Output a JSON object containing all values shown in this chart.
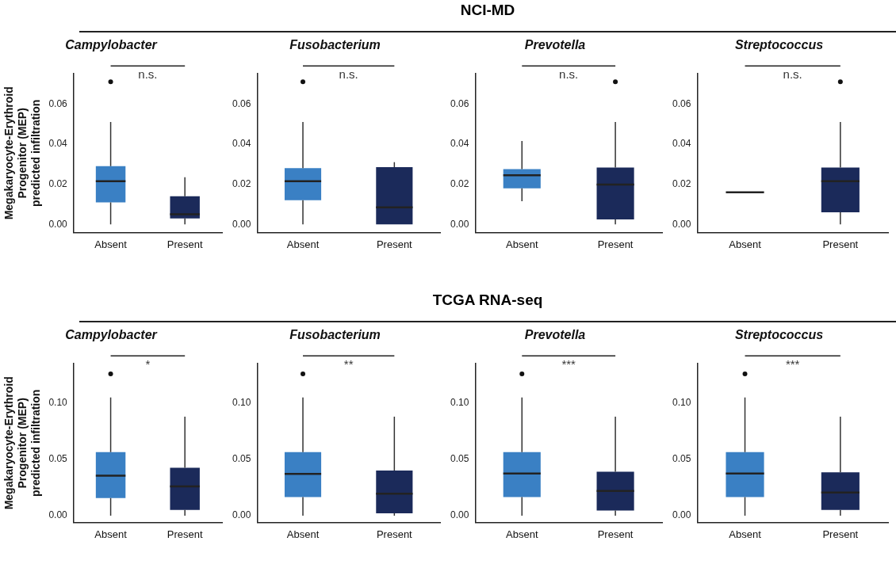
{
  "chart_data": [
    {
      "type": "other",
      "title": "NCI-MD"
    },
    {
      "type": "box",
      "title": "Campylobacter",
      "ylabel": "Megakaryocyte-Erythroid\nProgenitor (MEP)\npredicted infiltration",
      "categories": [
        "Absent",
        "Present"
      ],
      "colors": [
        "#3a80c4",
        "#1b2a5a"
      ],
      "ylim": [
        -0.004,
        0.075
      ],
      "yticks": [
        {
          "value": 0,
          "label": "0.00"
        },
        {
          "value": 0.02,
          "label": "0.02"
        },
        {
          "value": 0.04,
          "label": "0.04"
        },
        {
          "value": 0.06,
          "label": "0.06"
        }
      ],
      "annotations": [
        "n.s."
      ],
      "boxes": [
        {
          "low": 0,
          "q1": 0.011,
          "median": 0.0215,
          "q3": 0.029,
          "high": 0.051,
          "outliers": [
            0.071
          ]
        },
        {
          "low": 0,
          "q1": 0.003,
          "median": 0.005,
          "q3": 0.014,
          "high": 0.0235
        }
      ]
    },
    {
      "type": "box",
      "title": "Fusobacterium",
      "categories": [
        "Absent",
        "Present"
      ],
      "colors": [
        "#3a80c4",
        "#1b2a5a"
      ],
      "ylim": [
        -0.004,
        0.075
      ],
      "yticks": [
        {
          "value": 0,
          "label": "0.00"
        },
        {
          "value": 0.02,
          "label": "0.02"
        },
        {
          "value": 0.04,
          "label": "0.04"
        },
        {
          "value": 0.06,
          "label": "0.06"
        }
      ],
      "annotations": [
        "n.s."
      ],
      "boxes": [
        {
          "low": 0,
          "q1": 0.012,
          "median": 0.0215,
          "q3": 0.028,
          "high": 0.051,
          "outliers": [
            0.071
          ]
        },
        {
          "low": 0,
          "q1": 0,
          "median": 0.0085,
          "q3": 0.0285,
          "high": 0.031
        }
      ]
    },
    {
      "type": "box",
      "title": "Prevotella",
      "categories": [
        "Absent",
        "Present"
      ],
      "colors": [
        "#3a80c4",
        "#1b2a5a"
      ],
      "ylim": [
        -0.004,
        0.075
      ],
      "yticks": [
        {
          "value": 0,
          "label": "0.00"
        },
        {
          "value": 0.02,
          "label": "0.02"
        },
        {
          "value": 0.04,
          "label": "0.04"
        },
        {
          "value": 0.06,
          "label": "0.06"
        }
      ],
      "annotations": [
        "n.s."
      ],
      "boxes": [
        {
          "low": 0.0115,
          "q1": 0.018,
          "median": 0.0245,
          "q3": 0.0275,
          "high": 0.0415
        },
        {
          "low": 0,
          "q1": 0.0025,
          "median": 0.0198,
          "q3": 0.0283,
          "high": 0.051,
          "outliers": [
            0.071
          ]
        }
      ]
    },
    {
      "type": "box",
      "title": "Streptococcus",
      "categories": [
        "Absent",
        "Present"
      ],
      "colors": [
        "#222222",
        "#1b2a5a"
      ],
      "ylim": [
        -0.004,
        0.075
      ],
      "yticks": [
        {
          "value": 0,
          "label": "0.00"
        },
        {
          "value": 0.02,
          "label": "0.02"
        },
        {
          "value": 0.04,
          "label": "0.04"
        },
        {
          "value": 0.06,
          "label": "0.06"
        }
      ],
      "annotations": [
        "n.s."
      ],
      "boxes": [
        {
          "low": 0.016,
          "q1": 0.016,
          "median": 0.016,
          "q3": 0.016,
          "high": 0.016
        },
        {
          "low": 0,
          "q1": 0.006,
          "median": 0.0215,
          "q3": 0.0283,
          "high": 0.051,
          "outliers": [
            0.071
          ]
        }
      ]
    },
    {
      "type": "other",
      "title": "TCGA RNA-seq"
    },
    {
      "type": "box",
      "title": "Campylobacter",
      "ylabel": "Megakaryocyte-Erythroid\nProgenitor (MEP)\npredicted infiltration",
      "categories": [
        "Absent",
        "Present"
      ],
      "colors": [
        "#3a80c4",
        "#1b2a5a"
      ],
      "ylim": [
        -0.006,
        0.135
      ],
      "yticks": [
        {
          "value": 0,
          "label": "0.00"
        },
        {
          "value": 0.05,
          "label": "0.05"
        },
        {
          "value": 0.1,
          "label": "0.10"
        }
      ],
      "annotations": [
        "*"
      ],
      "boxes": [
        {
          "low": 0,
          "q1": 0.0155,
          "median": 0.0355,
          "q3": 0.0565,
          "high": 0.105,
          "outliers": [
            0.126
          ]
        },
        {
          "low": 0,
          "q1": 0.005,
          "median": 0.026,
          "q3": 0.0425,
          "high": 0.088
        }
      ]
    },
    {
      "type": "box",
      "title": "Fusobacterium",
      "categories": [
        "Absent",
        "Present"
      ],
      "colors": [
        "#3a80c4",
        "#1b2a5a"
      ],
      "ylim": [
        -0.006,
        0.135
      ],
      "yticks": [
        {
          "value": 0,
          "label": "0.00"
        },
        {
          "value": 0.05,
          "label": "0.05"
        },
        {
          "value": 0.1,
          "label": "0.10"
        }
      ],
      "annotations": [
        "**"
      ],
      "boxes": [
        {
          "low": 0,
          "q1": 0.0165,
          "median": 0.037,
          "q3": 0.0565,
          "high": 0.105,
          "outliers": [
            0.126
          ]
        },
        {
          "low": 0,
          "q1": 0.002,
          "median": 0.0195,
          "q3": 0.04,
          "high": 0.088
        }
      ]
    },
    {
      "type": "box",
      "title": "Prevotella",
      "categories": [
        "Absent",
        "Present"
      ],
      "colors": [
        "#3a80c4",
        "#1b2a5a"
      ],
      "ylim": [
        -0.006,
        0.135
      ],
      "yticks": [
        {
          "value": 0,
          "label": "0.00"
        },
        {
          "value": 0.05,
          "label": "0.05"
        },
        {
          "value": 0.1,
          "label": "0.10"
        }
      ],
      "annotations": [
        "***"
      ],
      "boxes": [
        {
          "low": 0,
          "q1": 0.0165,
          "median": 0.0375,
          "q3": 0.0565,
          "high": 0.105,
          "outliers": [
            0.126
          ]
        },
        {
          "low": 0,
          "q1": 0.0045,
          "median": 0.022,
          "q3": 0.039,
          "high": 0.088
        }
      ]
    },
    {
      "type": "box",
      "title": "Streptococcus",
      "categories": [
        "Absent",
        "Present"
      ],
      "colors": [
        "#3a80c4",
        "#1b2a5a"
      ],
      "ylim": [
        -0.006,
        0.135
      ],
      "yticks": [
        {
          "value": 0,
          "label": "0.00"
        },
        {
          "value": 0.05,
          "label": "0.05"
        },
        {
          "value": 0.1,
          "label": "0.10"
        }
      ],
      "annotations": [
        "***"
      ],
      "boxes": [
        {
          "low": 0,
          "q1": 0.0165,
          "median": 0.0375,
          "q3": 0.0565,
          "high": 0.105,
          "outliers": [
            0.126
          ]
        },
        {
          "low": 0,
          "q1": 0.005,
          "median": 0.0205,
          "q3": 0.0385,
          "high": 0.088
        }
      ]
    }
  ]
}
